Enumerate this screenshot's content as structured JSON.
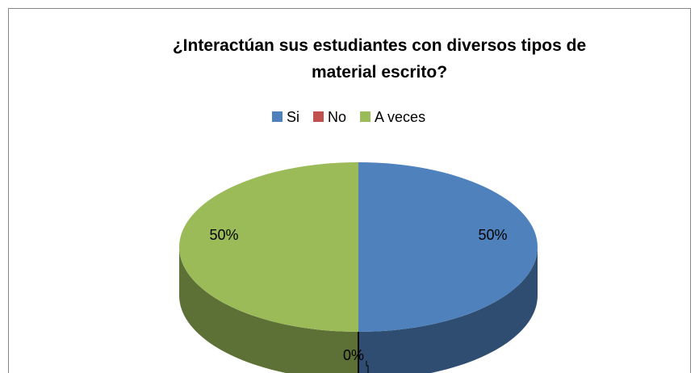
{
  "chart_data": {
    "type": "pie",
    "title": "¿Interactúan sus estudiantes  con diversos tipos de material escrito?",
    "categories": [
      "Si",
      "No",
      "A veces"
    ],
    "values": [
      50,
      0,
      50
    ],
    "value_labels": [
      "50%",
      "0%",
      "50%"
    ],
    "colors": [
      "#4f81bd",
      "#c0504d",
      "#9bbb59"
    ],
    "legend": "top",
    "three_d": true
  }
}
